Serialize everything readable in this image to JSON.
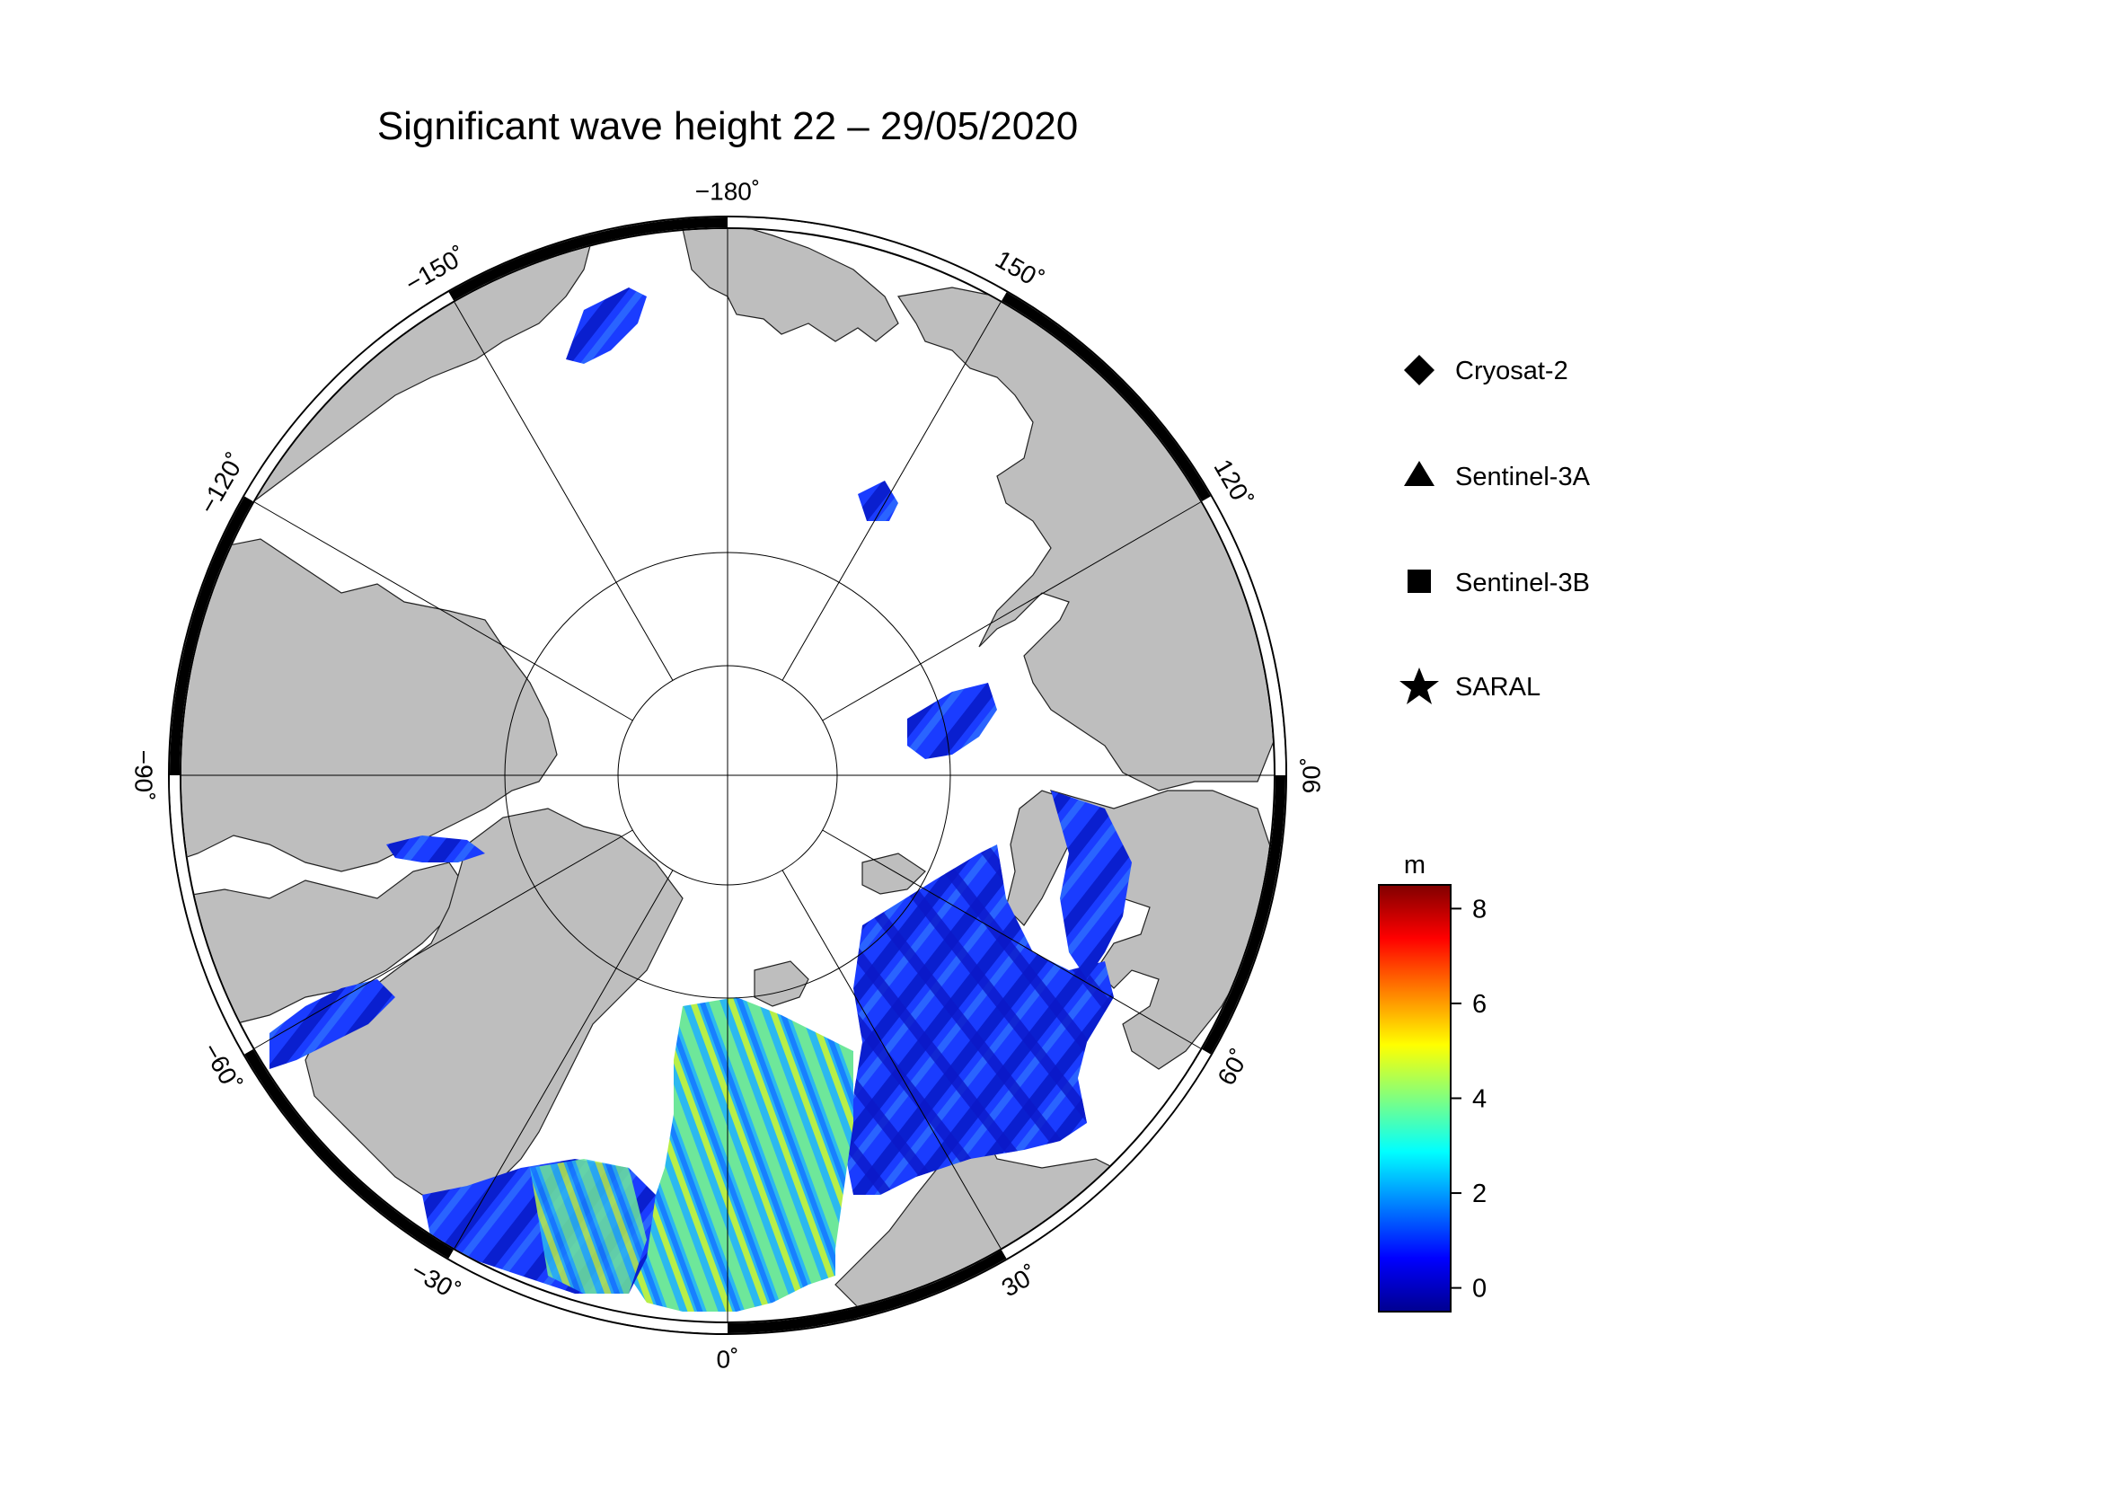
{
  "title": "Significant wave height 22 – 29/05/2020",
  "map": {
    "projection": "north polar stereographic",
    "longitude_labels": [
      {
        "lon": -180,
        "text": "−180˚"
      },
      {
        "lon": 150,
        "text": "150˚"
      },
      {
        "lon": 120,
        "text": "120˚"
      },
      {
        "lon": 90,
        "text": "90˚"
      },
      {
        "lon": 60,
        "text": "60˚"
      },
      {
        "lon": 30,
        "text": "30˚"
      },
      {
        "lon": 0,
        "text": "0˚"
      },
      {
        "lon": -30,
        "text": "−30˚"
      },
      {
        "lon": -60,
        "text": "−60˚"
      },
      {
        "lon": -90,
        "text": "−90˚"
      },
      {
        "lon": -120,
        "text": "−120˚"
      },
      {
        "lon": -150,
        "text": "−150˚"
      }
    ],
    "colors": {
      "land": "#bebebe",
      "ocean": "#ffffff",
      "grid": "#000000"
    }
  },
  "legend": {
    "items": [
      {
        "symbol": "diamond-icon",
        "label": "Cryosat-2"
      },
      {
        "symbol": "triangle-icon",
        "label": "Sentinel-3A"
      },
      {
        "symbol": "square-icon",
        "label": "Sentinel-3B"
      },
      {
        "symbol": "star-icon",
        "label": "SARAL"
      }
    ]
  },
  "colorbar": {
    "unit": "m",
    "min": -0.5,
    "max": 8.5,
    "ticks": [
      {
        "value": 0,
        "text": "0"
      },
      {
        "value": 2,
        "text": "2"
      },
      {
        "value": 4,
        "text": "4"
      },
      {
        "value": 6,
        "text": "6"
      },
      {
        "value": 8,
        "text": "8"
      }
    ],
    "colormap": "jet",
    "stops": [
      "#00008f",
      "#0000ff",
      "#0080ff",
      "#00ffff",
      "#80ff80",
      "#ffff00",
      "#ff8000",
      "#ff0000",
      "#800000"
    ]
  }
}
